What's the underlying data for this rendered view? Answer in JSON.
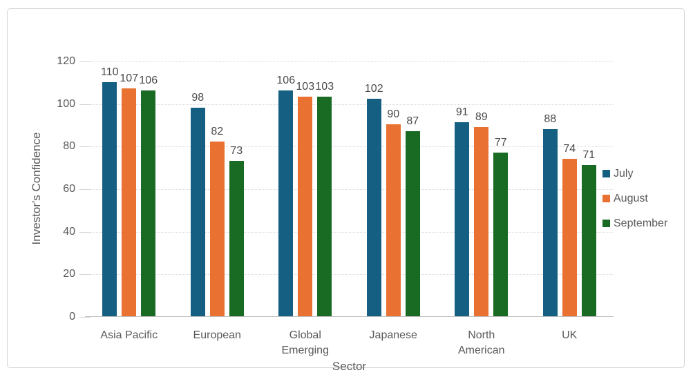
{
  "chart_data": {
    "type": "bar",
    "title": "",
    "xlabel": "Sector",
    "ylabel": "Investor's Confidence",
    "ylim": [
      0,
      120
    ],
    "yticks": [
      0,
      20,
      40,
      60,
      80,
      100,
      120
    ],
    "grid": true,
    "legend_position": "right",
    "categories": [
      "Asia Pacific",
      "European",
      "Global\nEmerging",
      "Japanese",
      "North\nAmerican",
      "UK"
    ],
    "series": [
      {
        "name": "July",
        "color": "#156082",
        "values": [
          110,
          98,
          106,
          102,
          91,
          88
        ]
      },
      {
        "name": "August",
        "color": "#E97132",
        "values": [
          107,
          82,
          103,
          90,
          89,
          74
        ]
      },
      {
        "name": "September",
        "color": "#196B24",
        "values": [
          106,
          73,
          103,
          87,
          77,
          71
        ]
      }
    ]
  }
}
